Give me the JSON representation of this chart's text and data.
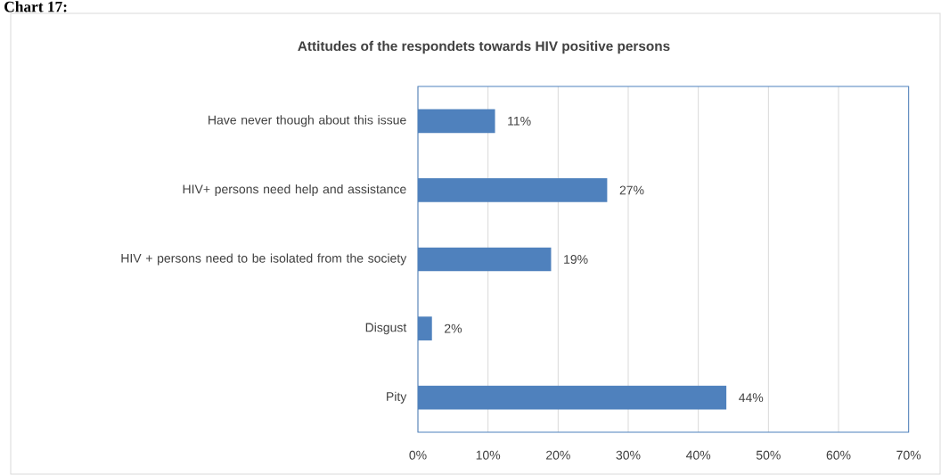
{
  "chart_data": {
    "type": "bar",
    "orientation": "horizontal",
    "title": "Attitudes of the respondets towards HIV positive persons",
    "annotations": [
      "Chart 17:"
    ],
    "categories": [
      "Have never though about this issue",
      "HIV+ persons need help and assistance",
      "HIV + persons need to be isolated from the society",
      "Disgust",
      "Pity"
    ],
    "values": [
      11,
      27,
      19,
      2,
      44
    ],
    "value_labels": [
      "11%",
      "27%",
      "19%",
      "2%",
      "44%"
    ],
    "color": "#4f81bd",
    "xlim": [
      0,
      70
    ],
    "xticks": [
      {
        "value": 0,
        "label": "0%"
      },
      {
        "value": 10,
        "label": "10%"
      },
      {
        "value": 20,
        "label": "20%"
      },
      {
        "value": 30,
        "label": "30%"
      },
      {
        "value": 40,
        "label": "40%"
      },
      {
        "value": 50,
        "label": "50%"
      },
      {
        "value": 60,
        "label": "60%"
      },
      {
        "value": 70,
        "label": "70%"
      }
    ],
    "grid": "x"
  }
}
